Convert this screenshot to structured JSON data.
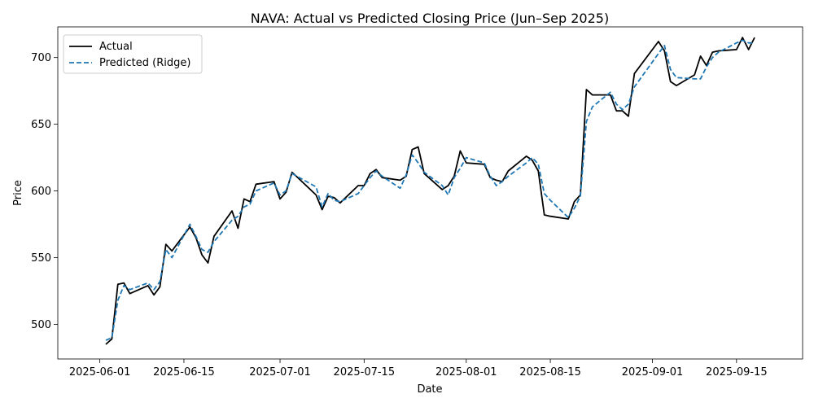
{
  "chart_data": {
    "type": "line",
    "title": "NAVA: Actual vs Predicted Closing Price (Jun–Sep 2025)",
    "xlabel": "Date",
    "ylabel": "Price",
    "x_range": [
      "2025-05-25",
      "2025-09-26"
    ],
    "ylim": [
      474,
      723
    ],
    "x_ticks": [
      "2025-06-01",
      "2025-06-15",
      "2025-07-01",
      "2025-07-15",
      "2025-08-01",
      "2025-08-15",
      "2025-09-01",
      "2025-09-15"
    ],
    "y_ticks": [
      500,
      550,
      600,
      650,
      700
    ],
    "grid": false,
    "legend": "top-left",
    "series": [
      {
        "name": "Actual",
        "color": "#000000",
        "style": "solid",
        "x": [
          "2025-06-02",
          "2025-06-03",
          "2025-06-04",
          "2025-06-05",
          "2025-06-06",
          "2025-06-09",
          "2025-06-10",
          "2025-06-11",
          "2025-06-12",
          "2025-06-13",
          "2025-06-16",
          "2025-06-17",
          "2025-06-18",
          "2025-06-19",
          "2025-06-20",
          "2025-06-23",
          "2025-06-24",
          "2025-06-25",
          "2025-06-26",
          "2025-06-27",
          "2025-06-30",
          "2025-07-01",
          "2025-07-02",
          "2025-07-03",
          "2025-07-07",
          "2025-07-08",
          "2025-07-09",
          "2025-07-10",
          "2025-07-11",
          "2025-07-14",
          "2025-07-15",
          "2025-07-16",
          "2025-07-17",
          "2025-07-18",
          "2025-07-21",
          "2025-07-22",
          "2025-07-23",
          "2025-07-24",
          "2025-07-25",
          "2025-07-28",
          "2025-07-29",
          "2025-07-30",
          "2025-07-31",
          "2025-08-01",
          "2025-08-04",
          "2025-08-05",
          "2025-08-06",
          "2025-08-07",
          "2025-08-08",
          "2025-08-11",
          "2025-08-12",
          "2025-08-13",
          "2025-08-14",
          "2025-08-15",
          "2025-08-18",
          "2025-08-19",
          "2025-08-20",
          "2025-08-21",
          "2025-08-22",
          "2025-08-25",
          "2025-08-26",
          "2025-08-27",
          "2025-08-28",
          "2025-08-29",
          "2025-09-02",
          "2025-09-03",
          "2025-09-04",
          "2025-09-05",
          "2025-09-08",
          "2025-09-09",
          "2025-09-10",
          "2025-09-11",
          "2025-09-12",
          "2025-09-15",
          "2025-09-16",
          "2025-09-17",
          "2025-09-18"
        ],
        "y": [
          485,
          489,
          530,
          531,
          523,
          529,
          522,
          528,
          560,
          555,
          573,
          565,
          552,
          546,
          566,
          585,
          572,
          594,
          592,
          605,
          607,
          594,
          599,
          614,
          597,
          586,
          596,
          595,
          591,
          604,
          604,
          613,
          616,
          610,
          608,
          611,
          631,
          633,
          613,
          601,
          604,
          611,
          630,
          621,
          620,
          610,
          608,
          607,
          615,
          626,
          623,
          615,
          582,
          581,
          579,
          592,
          597,
          676,
          672,
          672,
          660,
          660,
          656,
          688,
          712,
          705,
          682,
          679,
          687,
          701,
          694,
          704,
          705,
          706,
          715,
          706,
          715
        ]
      },
      {
        "name": "Predicted (Ridge)",
        "color": "#1f77b4",
        "style": "dashed",
        "x": [
          "2025-06-02",
          "2025-06-03",
          "2025-06-04",
          "2025-06-05",
          "2025-06-06",
          "2025-06-09",
          "2025-06-10",
          "2025-06-11",
          "2025-06-12",
          "2025-06-13",
          "2025-06-16",
          "2025-06-17",
          "2025-06-18",
          "2025-06-19",
          "2025-06-20",
          "2025-06-23",
          "2025-06-24",
          "2025-06-25",
          "2025-06-26",
          "2025-06-27",
          "2025-06-30",
          "2025-07-01",
          "2025-07-02",
          "2025-07-03",
          "2025-07-07",
          "2025-07-08",
          "2025-07-09",
          "2025-07-10",
          "2025-07-11",
          "2025-07-14",
          "2025-07-15",
          "2025-07-16",
          "2025-07-17",
          "2025-07-18",
          "2025-07-21",
          "2025-07-22",
          "2025-07-23",
          "2025-07-24",
          "2025-07-25",
          "2025-07-28",
          "2025-07-29",
          "2025-07-30",
          "2025-07-31",
          "2025-08-01",
          "2025-08-04",
          "2025-08-05",
          "2025-08-06",
          "2025-08-07",
          "2025-08-08",
          "2025-08-11",
          "2025-08-12",
          "2025-08-13",
          "2025-08-14",
          "2025-08-15",
          "2025-08-18",
          "2025-08-19",
          "2025-08-20",
          "2025-08-21",
          "2025-08-22",
          "2025-08-25",
          "2025-08-26",
          "2025-08-27",
          "2025-08-28",
          "2025-08-29",
          "2025-09-02",
          "2025-09-03",
          "2025-09-04",
          "2025-09-05",
          "2025-09-08",
          "2025-09-09",
          "2025-09-10",
          "2025-09-11",
          "2025-09-12",
          "2025-09-15",
          "2025-09-16",
          "2025-09-17",
          "2025-09-18"
        ],
        "y": [
          488,
          490,
          518,
          529,
          526,
          531,
          526,
          532,
          556,
          550,
          575,
          566,
          556,
          554,
          562,
          578,
          581,
          588,
          590,
          600,
          606,
          597,
          600,
          613,
          603,
          588,
          598,
          593,
          592,
          598,
          604,
          610,
          615,
          611,
          602,
          612,
          627,
          621,
          614,
          604,
          597,
          610,
          617,
          625,
          621,
          611,
          604,
          607,
          611,
          621,
          625,
          620,
          598,
          593,
          580,
          587,
          596,
          652,
          663,
          674,
          665,
          661,
          665,
          678,
          703,
          709,
          691,
          685,
          684,
          684,
          693,
          700,
          704,
          711,
          713,
          711,
          711
        ]
      }
    ]
  }
}
